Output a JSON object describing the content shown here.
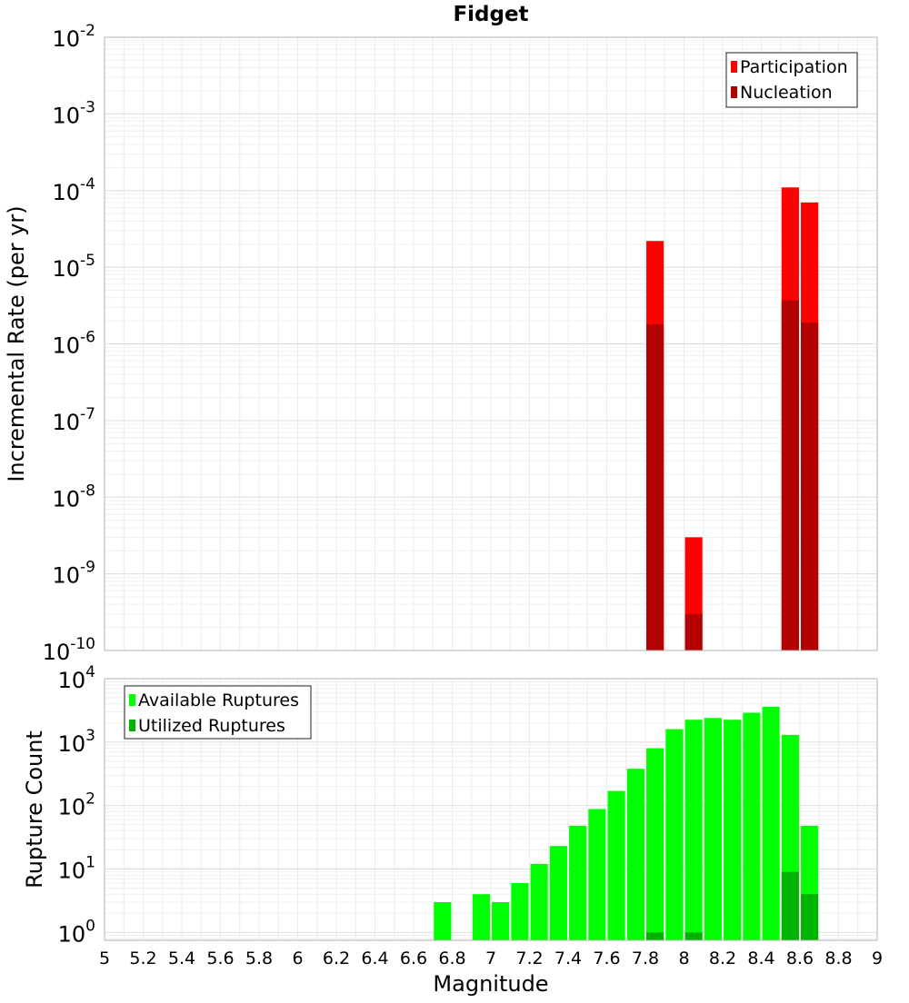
{
  "chart_data": [
    {
      "type": "bar",
      "title": "Fidget",
      "ylabel": "Incremental Rate (per yr)",
      "xlabel": "",
      "xlim": [
        5,
        9
      ],
      "yscale": "log",
      "ylim": [
        1e-10,
        0.01
      ],
      "y_ticks": [
        {
          "base": "10",
          "exp": "-10",
          "value": 1e-10
        },
        {
          "base": "10",
          "exp": "-9",
          "value": 1e-09
        },
        {
          "base": "10",
          "exp": "-8",
          "value": 1e-08
        },
        {
          "base": "10",
          "exp": "-7",
          "value": 1e-07
        },
        {
          "base": "10",
          "exp": "-6",
          "value": 1e-06
        },
        {
          "base": "10",
          "exp": "-5",
          "value": 1e-05
        },
        {
          "base": "10",
          "exp": "-4",
          "value": 0.0001
        },
        {
          "base": "10",
          "exp": "-3",
          "value": 0.001
        },
        {
          "base": "10",
          "exp": "-2",
          "value": 0.01
        }
      ],
      "grid": true,
      "legend_position": "top-right",
      "legend": [
        {
          "label": "Participation",
          "color": "#ff0000"
        },
        {
          "label": "Nucleation",
          "color": "#b30000"
        }
      ],
      "series": [
        {
          "name": "Participation",
          "color": "#ff0000",
          "x": [
            7.85,
            8.05,
            8.55,
            8.65
          ],
          "values": [
            2.2e-05,
            3e-09,
            0.00011,
            7e-05
          ]
        },
        {
          "name": "Nucleation",
          "color": "#b30000",
          "x": [
            7.85,
            8.05,
            8.55,
            8.65
          ],
          "values": [
            1.8e-06,
            3e-10,
            3.7e-06,
            1.9e-06
          ]
        }
      ]
    },
    {
      "type": "bar",
      "title": "",
      "ylabel": "Rupture Count",
      "xlabel": "Magnitude",
      "xlim": [
        5,
        9
      ],
      "x_ticks": [
        "5",
        "5.2",
        "5.4",
        "5.6",
        "5.8",
        "6",
        "6.2",
        "6.4",
        "6.6",
        "6.8",
        "7",
        "7.2",
        "7.4",
        "7.6",
        "7.8",
        "8",
        "8.2",
        "8.4",
        "8.6",
        "8.8",
        "9"
      ],
      "yscale": "log",
      "ylim": [
        0.75,
        10000
      ],
      "y_ticks": [
        {
          "base": "10",
          "exp": "0",
          "value": 1
        },
        {
          "base": "10",
          "exp": "1",
          "value": 10
        },
        {
          "base": "10",
          "exp": "2",
          "value": 100
        },
        {
          "base": "10",
          "exp": "3",
          "value": 1000
        },
        {
          "base": "10",
          "exp": "4",
          "value": 10000
        }
      ],
      "grid": true,
      "legend_position": "top-left",
      "legend": [
        {
          "label": "Available Ruptures",
          "color": "#00ff00"
        },
        {
          "label": "Utilized Ruptures",
          "color": "#00b300"
        }
      ],
      "series": [
        {
          "name": "Available Ruptures",
          "color": "#00ff00",
          "x": [
            6.75,
            6.95,
            7.05,
            7.15,
            7.25,
            7.35,
            7.45,
            7.55,
            7.65,
            7.75,
            7.85,
            7.95,
            8.05,
            8.15,
            8.25,
            8.35,
            8.45,
            8.55,
            8.65
          ],
          "values": [
            3,
            4,
            3,
            6,
            12,
            23,
            48,
            88,
            170,
            380,
            800,
            1600,
            2250,
            2400,
            2250,
            2900,
            3600,
            1300,
            48
          ]
        },
        {
          "name": "Utilized Ruptures",
          "color": "#00b300",
          "x": [
            7.85,
            8.05,
            8.55,
            8.65
          ],
          "values": [
            1,
            1,
            9,
            4
          ]
        }
      ]
    }
  ]
}
